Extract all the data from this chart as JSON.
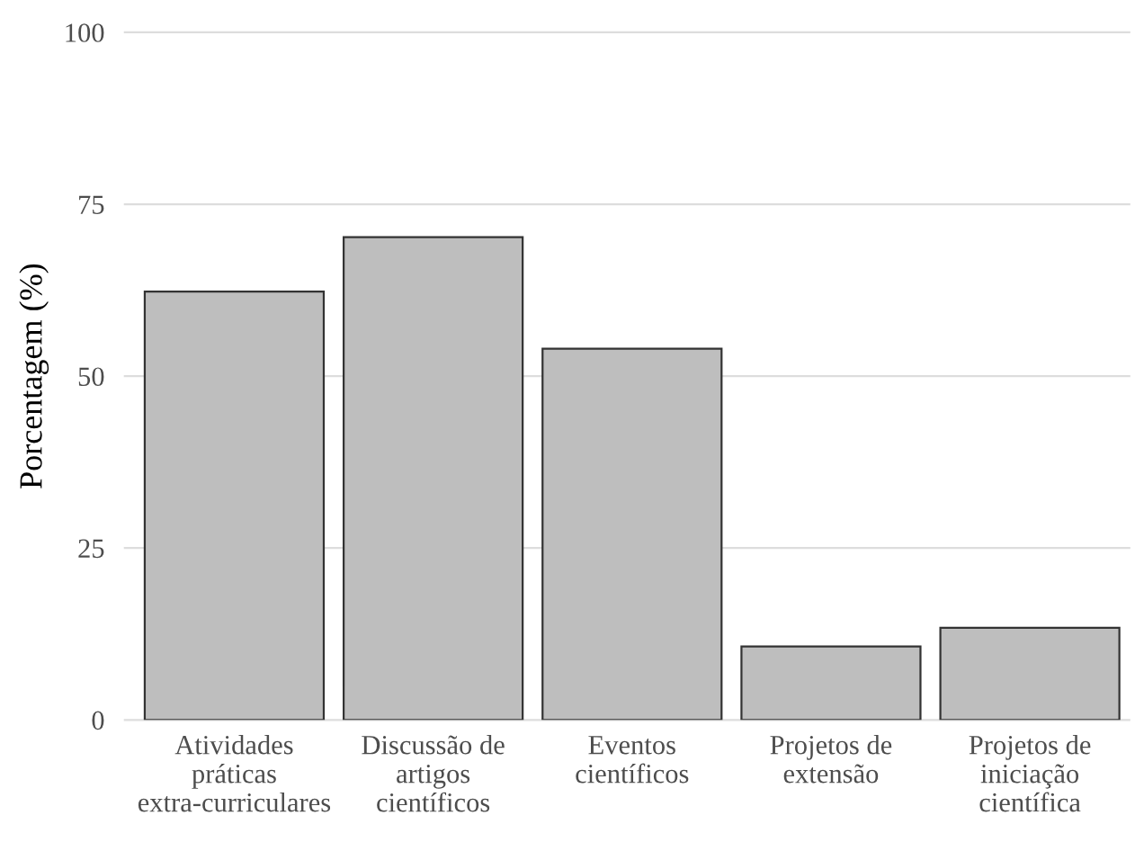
{
  "chart_data": {
    "type": "bar",
    "ylabel": "Porcentagem (%)",
    "categories": [
      "Atividades\npráticas\nextra-curriculares",
      "Discussão de\nartigos\ncientíficos",
      "Eventos\ncientíficos",
      "Projetos de\nextensão",
      "Projetos de\niniciação\ncientífica"
    ],
    "values": [
      62.3,
      70.2,
      54.0,
      10.7,
      13.4
    ],
    "color": "#bebebe",
    "ylim": [
      0,
      100
    ],
    "yticks": [
      0,
      25,
      50,
      75,
      100
    ],
    "grid": "y"
  }
}
